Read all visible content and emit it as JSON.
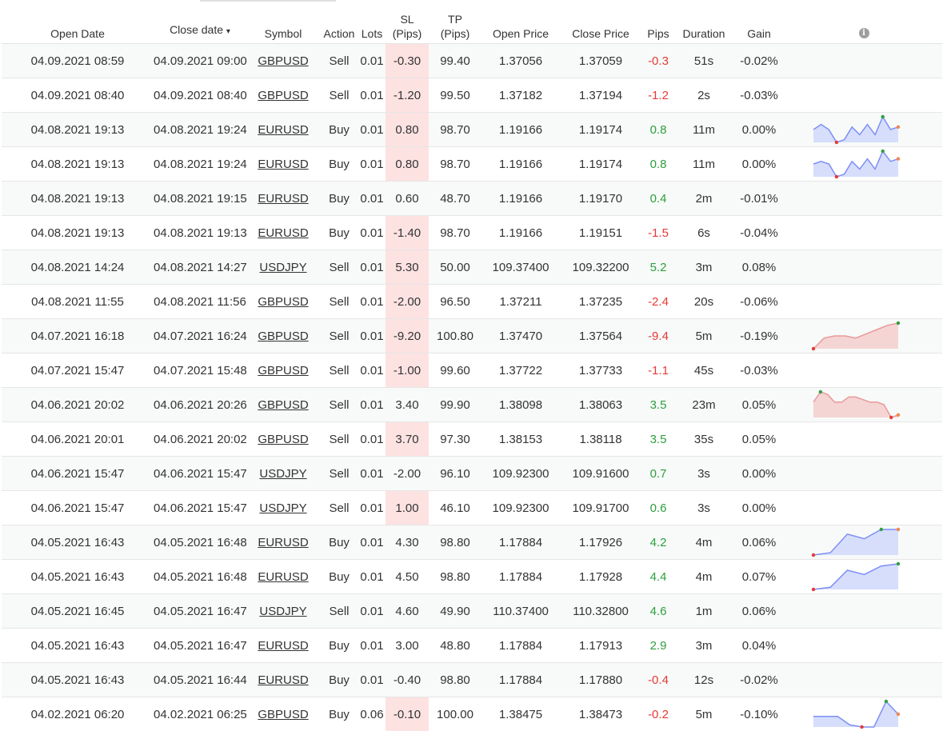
{
  "headers": {
    "open_date": "Open Date",
    "close_date": "Close date",
    "sort_arrow": "▾",
    "symbol": "Symbol",
    "action": "Action",
    "lots": "Lots",
    "sl_line1": "SL",
    "sl_line2": "(Pips)",
    "tp_line1": "TP",
    "tp_line2": "(Pips)",
    "open_price": "Open Price",
    "close_price": "Close Price",
    "pips": "Pips",
    "duration": "Duration",
    "gain": "Gain",
    "info_icon": "i"
  },
  "colors": {
    "positive": "#2e9e3e",
    "negative": "#e53935",
    "sl_highlight": "#fde2e2",
    "spark_blue_fill": "#d6defc",
    "spark_blue_line": "#7d8ef5",
    "spark_red_fill": "#f5d4d4",
    "spark_red_line": "#e99a9a"
  },
  "trades": [
    {
      "open_date": "04.09.2021 08:59",
      "close_date": "04.09.2021 09:00",
      "symbol": "GBPUSD",
      "action": "Sell",
      "lots": "0.01",
      "sl": "-0.30",
      "sl_highlight": true,
      "tp": "99.40",
      "open_price": "1.37056",
      "close_price": "1.37059",
      "pips": "-0.3",
      "duration": "51s",
      "gain": "-0.02%",
      "chart": null
    },
    {
      "open_date": "04.09.2021 08:40",
      "close_date": "04.09.2021 08:40",
      "symbol": "GBPUSD",
      "action": "Sell",
      "lots": "0.01",
      "sl": "-1.20",
      "sl_highlight": true,
      "tp": "99.50",
      "open_price": "1.37182",
      "close_price": "1.37194",
      "pips": "-1.2",
      "duration": "2s",
      "gain": "-0.03%",
      "chart": null
    },
    {
      "open_date": "04.08.2021 19:13",
      "close_date": "04.08.2021 19:24",
      "symbol": "EURUSD",
      "action": "Buy",
      "lots": "0.01",
      "sl": "0.80",
      "sl_highlight": true,
      "tp": "98.70",
      "open_price": "1.19166",
      "close_price": "1.19174",
      "pips": "0.8",
      "duration": "11m",
      "gain": "0.00%",
      "chart": {
        "color": "blue",
        "values": [
          5,
          7,
          5,
          0,
          1,
          6,
          3,
          7,
          3,
          10,
          5,
          6
        ],
        "min_index": 3,
        "max_index": 9
      }
    },
    {
      "open_date": "04.08.2021 19:13",
      "close_date": "04.08.2021 19:24",
      "symbol": "EURUSD",
      "action": "Buy",
      "lots": "0.01",
      "sl": "0.80",
      "sl_highlight": true,
      "tp": "98.70",
      "open_price": "1.19166",
      "close_price": "1.19174",
      "pips": "0.8",
      "duration": "11m",
      "gain": "0.00%",
      "chart": {
        "color": "blue",
        "values": [
          5,
          6,
          5,
          0,
          1,
          6,
          3,
          7,
          3,
          10,
          6,
          7
        ],
        "min_index": 3,
        "max_index": 9
      }
    },
    {
      "open_date": "04.08.2021 19:13",
      "close_date": "04.08.2021 19:15",
      "symbol": "EURUSD",
      "action": "Buy",
      "lots": "0.01",
      "sl": "0.60",
      "sl_highlight": false,
      "tp": "48.70",
      "open_price": "1.19166",
      "close_price": "1.19170",
      "pips": "0.4",
      "duration": "2m",
      "gain": "-0.01%",
      "chart": null
    },
    {
      "open_date": "04.08.2021 19:13",
      "close_date": "04.08.2021 19:13",
      "symbol": "EURUSD",
      "action": "Buy",
      "lots": "0.01",
      "sl": "-1.40",
      "sl_highlight": true,
      "tp": "98.70",
      "open_price": "1.19166",
      "close_price": "1.19151",
      "pips": "-1.5",
      "duration": "6s",
      "gain": "-0.04%",
      "chart": null
    },
    {
      "open_date": "04.08.2021 14:24",
      "close_date": "04.08.2021 14:27",
      "symbol": "USDJPY",
      "action": "Sell",
      "lots": "0.01",
      "sl": "5.30",
      "sl_highlight": true,
      "tp": "50.00",
      "open_price": "109.37400",
      "close_price": "109.32200",
      "pips": "5.2",
      "duration": "3m",
      "gain": "0.08%",
      "chart": null
    },
    {
      "open_date": "04.08.2021 11:55",
      "close_date": "04.08.2021 11:56",
      "symbol": "GBPUSD",
      "action": "Sell",
      "lots": "0.01",
      "sl": "-2.00",
      "sl_highlight": true,
      "tp": "96.50",
      "open_price": "1.37211",
      "close_price": "1.37235",
      "pips": "-2.4",
      "duration": "20s",
      "gain": "-0.06%",
      "chart": null
    },
    {
      "open_date": "04.07.2021 16:18",
      "close_date": "04.07.2021 16:24",
      "symbol": "GBPUSD",
      "action": "Sell",
      "lots": "0.01",
      "sl": "-9.20",
      "sl_highlight": true,
      "tp": "100.80",
      "open_price": "1.37470",
      "close_price": "1.37564",
      "pips": "-9.4",
      "duration": "5m",
      "gain": "-0.19%",
      "chart": {
        "color": "red",
        "values": [
          0,
          5,
          6,
          6,
          5,
          7,
          9,
          11,
          12
        ],
        "min_index": 0,
        "max_index": 8
      }
    },
    {
      "open_date": "04.07.2021 15:47",
      "close_date": "04.07.2021 15:48",
      "symbol": "GBPUSD",
      "action": "Sell",
      "lots": "0.01",
      "sl": "-1.00",
      "sl_highlight": true,
      "tp": "99.60",
      "open_price": "1.37722",
      "close_price": "1.37733",
      "pips": "-1.1",
      "duration": "45s",
      "gain": "-0.03%",
      "chart": null
    },
    {
      "open_date": "04.06.2021 20:02",
      "close_date": "04.06.2021 20:26",
      "symbol": "GBPUSD",
      "action": "Sell",
      "lots": "0.01",
      "sl": "3.40",
      "sl_highlight": false,
      "tp": "99.90",
      "open_price": "1.38098",
      "close_price": "1.38063",
      "pips": "3.5",
      "duration": "23m",
      "gain": "0.05%",
      "chart": {
        "color": "red",
        "values": [
          6,
          10,
          9,
          6,
          6,
          8,
          8,
          7,
          6,
          6,
          5,
          0,
          1
        ],
        "min_index": 11,
        "max_index": 1
      }
    },
    {
      "open_date": "04.06.2021 20:01",
      "close_date": "04.06.2021 20:02",
      "symbol": "GBPUSD",
      "action": "Sell",
      "lots": "0.01",
      "sl": "3.70",
      "sl_highlight": true,
      "tp": "97.30",
      "open_price": "1.38153",
      "close_price": "1.38118",
      "pips": "3.5",
      "duration": "35s",
      "gain": "0.05%",
      "chart": null
    },
    {
      "open_date": "04.06.2021 15:47",
      "close_date": "04.06.2021 15:47",
      "symbol": "USDJPY",
      "action": "Sell",
      "lots": "0.01",
      "sl": "-2.00",
      "sl_highlight": false,
      "tp": "96.10",
      "open_price": "109.92300",
      "close_price": "109.91600",
      "pips": "0.7",
      "duration": "3s",
      "gain": "0.00%",
      "chart": null
    },
    {
      "open_date": "04.06.2021 15:47",
      "close_date": "04.06.2021 15:47",
      "symbol": "USDJPY",
      "action": "Sell",
      "lots": "0.01",
      "sl": "1.00",
      "sl_highlight": true,
      "tp": "46.10",
      "open_price": "109.92300",
      "close_price": "109.91700",
      "pips": "0.6",
      "duration": "3s",
      "gain": "0.00%",
      "chart": null
    },
    {
      "open_date": "04.05.2021 16:43",
      "close_date": "04.05.2021 16:48",
      "symbol": "EURUSD",
      "action": "Buy",
      "lots": "0.01",
      "sl": "4.30",
      "sl_highlight": false,
      "tp": "98.80",
      "open_price": "1.17884",
      "close_price": "1.17926",
      "pips": "4.2",
      "duration": "4m",
      "gain": "0.06%",
      "chart": {
        "color": "blue",
        "values": [
          0,
          1,
          9,
          7,
          11,
          11
        ],
        "min_index": 0,
        "max_index": 4
      }
    },
    {
      "open_date": "04.05.2021 16:43",
      "close_date": "04.05.2021 16:48",
      "symbol": "EURUSD",
      "action": "Buy",
      "lots": "0.01",
      "sl": "4.50",
      "sl_highlight": false,
      "tp": "98.80",
      "open_price": "1.17884",
      "close_price": "1.17928",
      "pips": "4.4",
      "duration": "4m",
      "gain": "0.07%",
      "chart": {
        "color": "blue",
        "values": [
          0,
          1,
          9,
          7,
          11,
          12
        ],
        "min_index": 0,
        "max_index": 5
      }
    },
    {
      "open_date": "04.05.2021 16:45",
      "close_date": "04.05.2021 16:47",
      "symbol": "USDJPY",
      "action": "Sell",
      "lots": "0.01",
      "sl": "4.60",
      "sl_highlight": false,
      "tp": "49.90",
      "open_price": "110.37400",
      "close_price": "110.32800",
      "pips": "4.6",
      "duration": "1m",
      "gain": "0.06%",
      "chart": null
    },
    {
      "open_date": "04.05.2021 16:43",
      "close_date": "04.05.2021 16:47",
      "symbol": "EURUSD",
      "action": "Buy",
      "lots": "0.01",
      "sl": "3.00",
      "sl_highlight": false,
      "tp": "48.80",
      "open_price": "1.17884",
      "close_price": "1.17913",
      "pips": "2.9",
      "duration": "3m",
      "gain": "0.04%",
      "chart": null
    },
    {
      "open_date": "04.05.2021 16:43",
      "close_date": "04.05.2021 16:44",
      "symbol": "EURUSD",
      "action": "Buy",
      "lots": "0.01",
      "sl": "-0.40",
      "sl_highlight": false,
      "tp": "98.80",
      "open_price": "1.17884",
      "close_price": "1.17880",
      "pips": "-0.4",
      "duration": "12s",
      "gain": "-0.02%",
      "chart": null
    },
    {
      "open_date": "04.02.2021 06:20",
      "close_date": "04.02.2021 06:25",
      "symbol": "GBPUSD",
      "action": "Buy",
      "lots": "0.06",
      "sl": "-0.10",
      "sl_highlight": true,
      "tp": "100.00",
      "open_price": "1.38475",
      "close_price": "1.38473",
      "pips": "-0.2",
      "duration": "5m",
      "gain": "-0.10%",
      "chart": {
        "color": "blue",
        "values": [
          5,
          5,
          5,
          1,
          0,
          0,
          12,
          6
        ],
        "min_index": 4,
        "max_index": 6
      }
    }
  ]
}
